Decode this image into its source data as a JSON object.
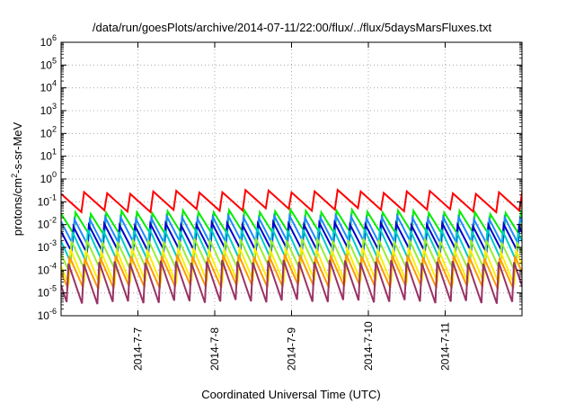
{
  "chart_data": {
    "type": "line",
    "title": "/data/run/goesPlots/archive/2014-07-11/22:00/flux/../flux/5daysMarsFluxes.txt",
    "xlabel": "Coordinated Universal Time (UTC)",
    "ylabel_main": "protons/cm",
    "ylabel_sup": "2",
    "ylabel_rest": "-s-sr-MeV",
    "y_scale": "log",
    "ylim_exp": [
      -6,
      6
    ],
    "xlim_days": [
      6.0,
      12.0
    ],
    "y_ticks": [
      {
        "base": "10",
        "exp": "-6",
        "value": -6
      },
      {
        "base": "10",
        "exp": "-5",
        "value": -5
      },
      {
        "base": "10",
        "exp": "-4",
        "value": -4
      },
      {
        "base": "10",
        "exp": "-3",
        "value": -3
      },
      {
        "base": "10",
        "exp": "-2",
        "value": -2
      },
      {
        "base": "10",
        "exp": "-1",
        "value": -1
      },
      {
        "base": "10",
        "exp": "0",
        "value": 0
      },
      {
        "base": "10",
        "exp": "1",
        "value": 1
      },
      {
        "base": "10",
        "exp": "2",
        "value": 2
      },
      {
        "base": "10",
        "exp": "3",
        "value": 3
      },
      {
        "base": "10",
        "exp": "4",
        "value": 4
      },
      {
        "base": "10",
        "exp": "5",
        "value": 5
      },
      {
        "base": "10",
        "exp": "6",
        "value": 6
      }
    ],
    "x_ticks": [
      {
        "label": "2014-7-7",
        "value": 7
      },
      {
        "label": "2014-7-8",
        "value": 8
      },
      {
        "label": "2014-7-9",
        "value": 9
      },
      {
        "label": "2014-7-10",
        "value": 10
      },
      {
        "label": "2014-7-11",
        "value": 11
      }
    ],
    "grid": true,
    "series": [
      {
        "color": "#ff0000",
        "low": -1.45,
        "high": -0.65,
        "period": 0.3,
        "trend": 0.12
      },
      {
        "color": "#00ee00",
        "low": -2.45,
        "high": -1.5,
        "period": 0.2,
        "trend": 0.1
      },
      {
        "color": "#2288ff",
        "low": -2.9,
        "high": -1.75,
        "period": 0.2,
        "trend": 0.1
      },
      {
        "color": "#0000cc",
        "low": -3.2,
        "high": -2.05,
        "period": 0.2,
        "trend": 0.1
      },
      {
        "color": "#00cccc",
        "low": -3.6,
        "high": -2.3,
        "period": 0.2,
        "trend": 0.1
      },
      {
        "color": "#99ee33",
        "low": -4.05,
        "high": -2.75,
        "period": 0.2,
        "trend": 0.1
      },
      {
        "color": "#ffee00",
        "low": -4.6,
        "high": -3.15,
        "period": 0.2,
        "trend": 0.1
      },
      {
        "color": "#ff9900",
        "low": -4.8,
        "high": -3.45,
        "period": 0.2,
        "trend": 0.1
      },
      {
        "color": "#993366",
        "low": -5.45,
        "high": -3.7,
        "period": 0.2,
        "trend": 0.1
      }
    ]
  }
}
